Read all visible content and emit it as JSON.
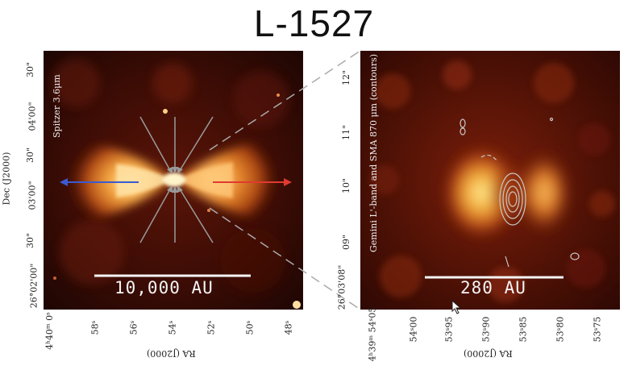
{
  "title": "L-1527",
  "left_panel": {
    "caption": "Spitzer 3.6μm",
    "scale_bar": "10,000 AU",
    "dec_axis_label": "Dec (J2000)",
    "ra_axis_label": "RA (J2000)",
    "y_ticks": [
      "30\"",
      "04'00\"",
      "30\"",
      "03'00\"",
      "30\"",
      "26°02'00\""
    ],
    "x_ticks": [
      "4ʰ40ᵐ 0ˢ",
      "58ˢ",
      "56ˢ",
      "54ˢ",
      "52ˢ",
      "50ˢ",
      "48ˢ"
    ]
  },
  "right_panel": {
    "caption": "Gemini L'-band and SMA 870 μm (contours)",
    "scale_bar": "280 AU",
    "ra_axis_label": "RA (J2000)",
    "y_ticks": [
      "12\"",
      "11\"",
      "10\"",
      "09\"",
      "26°03'08\""
    ],
    "x_ticks": [
      "4ʰ39ᵐ 54ˢ05",
      "54ˢ00",
      "53ˢ95",
      "53ˢ90",
      "53ˢ85",
      "53ˢ80",
      "53ˢ75"
    ]
  }
}
